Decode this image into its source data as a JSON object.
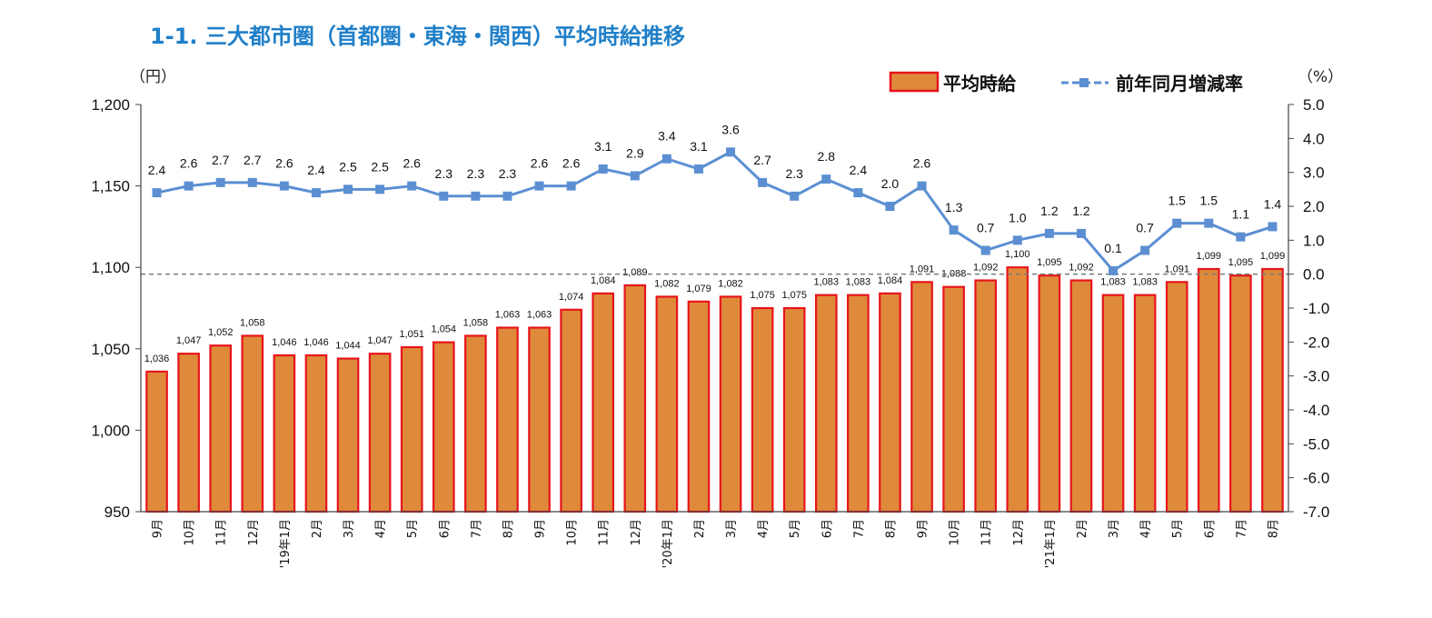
{
  "title": "1-1. 三大都市圏（首都圏・東海・関西）平均時給推移",
  "left_unit": "（円）",
  "right_unit": "（%）",
  "chart_data": {
    "type": "bar+line",
    "categories": [
      "9月",
      "10月",
      "11月",
      "12月",
      "'19年1月",
      "2月",
      "3月",
      "4月",
      "5月",
      "6月",
      "7月",
      "8月",
      "9月",
      "10月",
      "11月",
      "12月",
      "'20年1月",
      "2月",
      "3月",
      "4月",
      "5月",
      "6月",
      "7月",
      "8月",
      "9月",
      "10月",
      "11月",
      "12月",
      "'21年1月",
      "2月",
      "3月",
      "4月",
      "5月",
      "6月",
      "7月",
      "8月"
    ],
    "series": [
      {
        "name": "平均時給",
        "type": "bar",
        "axis": "left",
        "color": "#de8a3a",
        "border": "#e8141c",
        "values": [
          1036,
          1047,
          1052,
          1058,
          1046,
          1046,
          1044,
          1047,
          1051,
          1054,
          1058,
          1063,
          1063,
          1074,
          1084,
          1089,
          1082,
          1079,
          1082,
          1075,
          1075,
          1083,
          1083,
          1084,
          1091,
          1088,
          1092,
          1100,
          1095,
          1092,
          1083,
          1083,
          1091,
          1099,
          1095,
          1099
        ],
        "labels": [
          "1,036",
          "1,047",
          "1,052",
          "1,058",
          "1,046",
          "1,046",
          "1,044",
          "1,047",
          "1,051",
          "1,054",
          "1,058",
          "1,063",
          "1,063",
          "1,074",
          "1,084",
          "1,089",
          "1,082",
          "1,079",
          "1,082",
          "1,075",
          "1,075",
          "1,083",
          "1,083",
          "1,084",
          "1,091",
          "1,088",
          "1,092",
          "1,100",
          "1,095",
          "1,092",
          "1,083",
          "1,083",
          "1,091",
          "1,099",
          "1,095",
          "1,099"
        ]
      },
      {
        "name": "前年同月増減率",
        "type": "line",
        "axis": "right",
        "color": "#5b8fd2",
        "values": [
          2.4,
          2.6,
          2.7,
          2.7,
          2.6,
          2.4,
          2.5,
          2.5,
          2.6,
          2.3,
          2.3,
          2.3,
          2.6,
          2.6,
          3.1,
          2.9,
          3.4,
          3.1,
          3.6,
          2.7,
          2.3,
          2.8,
          2.4,
          2.0,
          2.6,
          1.3,
          0.7,
          1.0,
          1.2,
          1.2,
          0.1,
          0.7,
          1.5,
          1.5,
          1.1,
          1.4
        ],
        "labels": [
          "2.4",
          "2.6",
          "2.7",
          "2.7",
          "2.6",
          "2.4",
          "2.5",
          "2.5",
          "2.6",
          "2.3",
          "2.3",
          "2.3",
          "2.6",
          "2.6",
          "3.1",
          "2.9",
          "3.4",
          "3.1",
          "3.6",
          "2.7",
          "2.3",
          "2.8",
          "2.4",
          "2.0",
          "2.6",
          "1.3",
          "0.7",
          "1.0",
          "1.2",
          "1.2",
          "0.1",
          "0.7",
          "1.5",
          "1.5",
          "1.1",
          "1.4"
        ]
      }
    ],
    "left_axis": {
      "ylim": [
        950,
        1200
      ],
      "ticks": [
        950,
        1000,
        1050,
        1100,
        1150,
        1200
      ],
      "tick_labels": [
        "950",
        "1,000",
        "1,050",
        "1,100",
        "1,150",
        "1,200"
      ]
    },
    "right_axis": {
      "ylim": [
        -7.0,
        5.0
      ],
      "ticks": [
        5,
        4,
        3,
        2,
        1,
        0,
        -1,
        -2,
        -3,
        -4,
        -5,
        -6,
        -7
      ],
      "tick_labels": [
        "5.0",
        "4.0",
        "3.0",
        "2.0",
        "1.0",
        "0.0",
        "-1.0",
        "-2.0",
        "-3.0",
        "-4.0",
        "-5.0",
        "-6.0",
        "-7.0"
      ]
    },
    "zero_reference_line": "dashed",
    "legend_position": "top-right",
    "grid": false
  }
}
